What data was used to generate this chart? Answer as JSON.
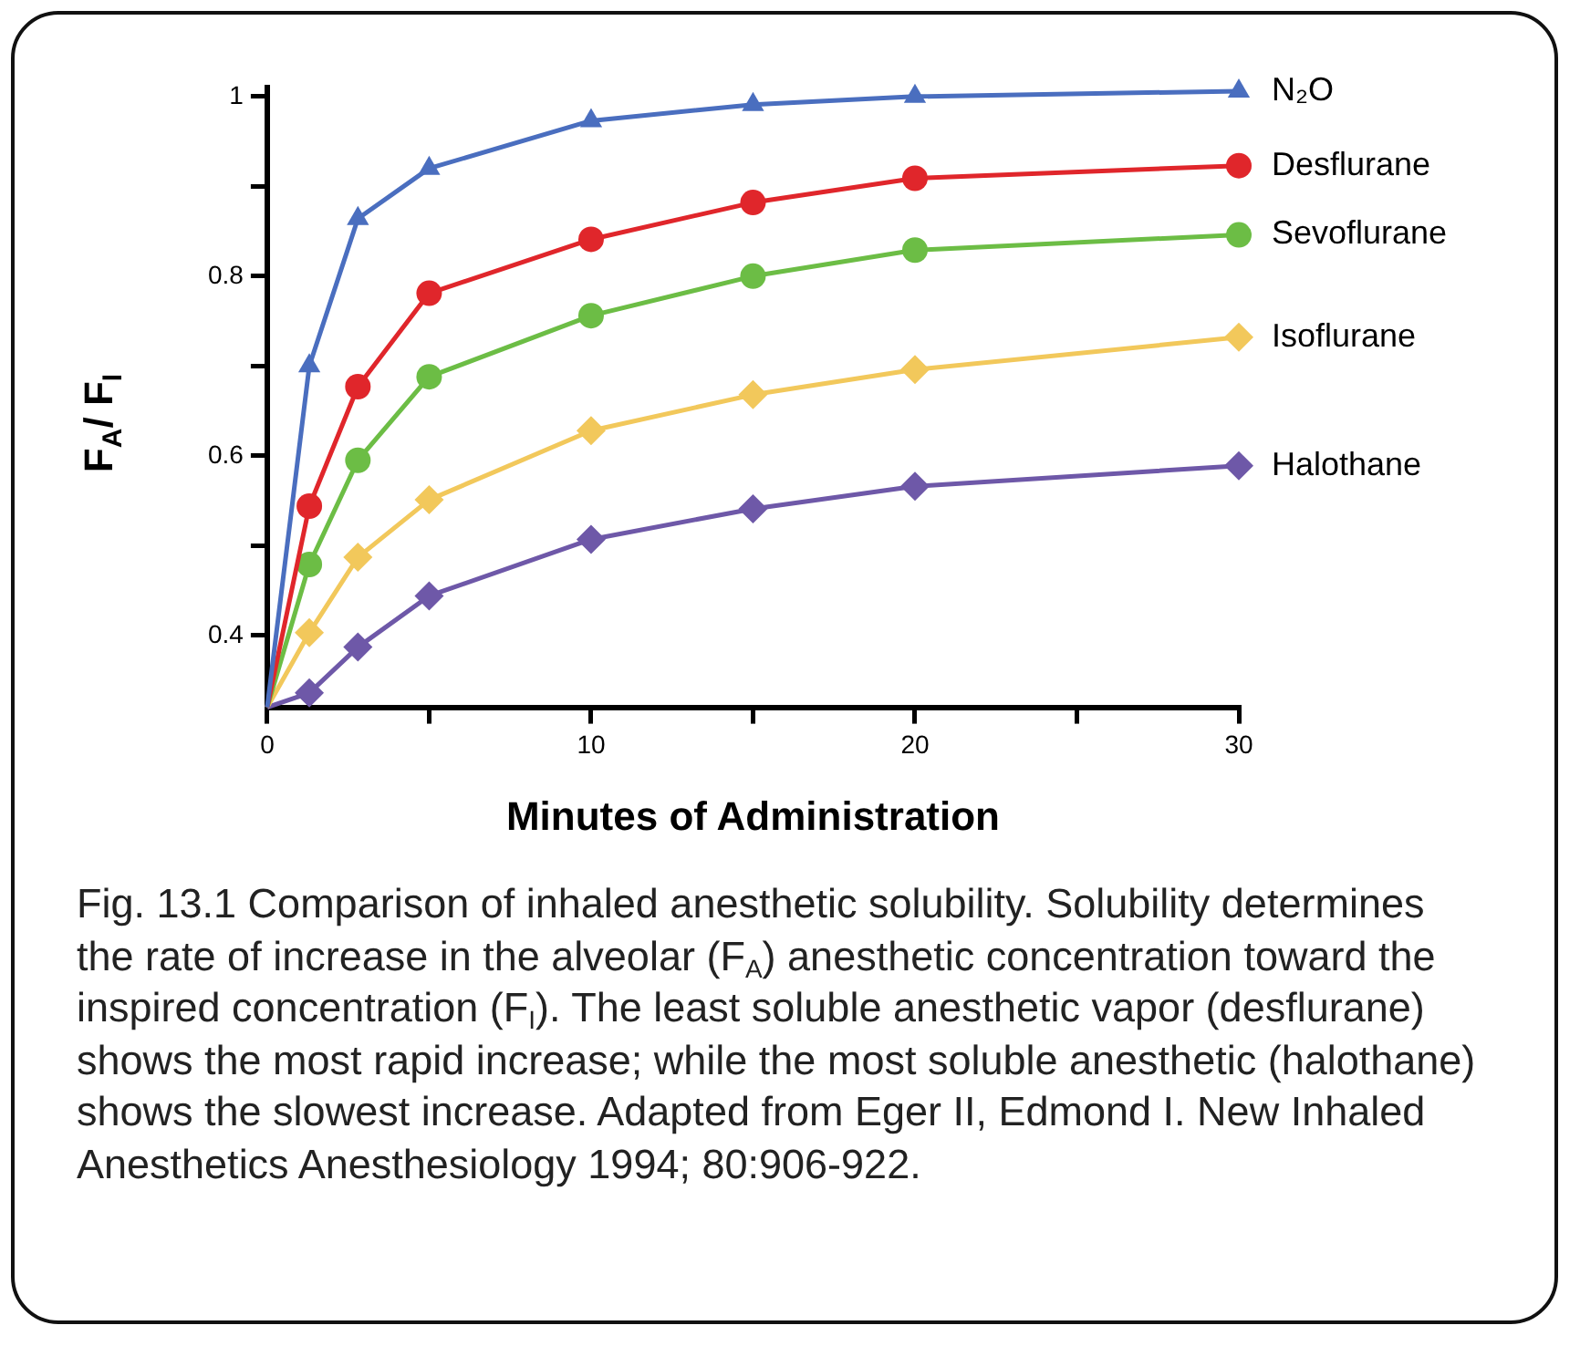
{
  "chart_data": {
    "type": "line",
    "xlabel": "Minutes of Administration",
    "ylabel": "F$_{A}$/ F$_{I}$",
    "x": [
      0,
      1.3,
      2.8,
      5,
      10,
      15,
      20,
      30
    ],
    "xlim": [
      0,
      30
    ],
    "xticks": [
      0,
      {
        "value": 5,
        "label": null
      },
      10,
      {
        "value": 15,
        "label": null
      },
      20,
      {
        "value": 25,
        "label": null
      },
      30
    ],
    "ylim": [
      0.32,
      1.01
    ],
    "yticks": [
      0.4,
      {
        "value": 0.5,
        "label": null
      },
      0.6,
      {
        "value": 0.7,
        "label": null
      },
      0.8,
      {
        "value": 0.9,
        "label": null
      },
      1
    ],
    "grid": false,
    "legend": false,
    "line_style": "solid",
    "series": [
      {
        "name": "N₂O",
        "color": "#4a6ebf",
        "marker": "triangle",
        "values": [
          0.32,
          0.7,
          0.864,
          0.92,
          0.973,
          0.991,
          1.0,
          1.006
        ]
      },
      {
        "name": "Desflurane",
        "color": "#e0262b",
        "marker": "circle",
        "values": [
          0.32,
          0.544,
          0.677,
          0.781,
          0.841,
          0.882,
          0.909,
          0.923
        ]
      },
      {
        "name": "Sevoflurane",
        "color": "#6cbd45",
        "marker": "circle",
        "values": [
          0.32,
          0.479,
          0.595,
          0.688,
          0.756,
          0.8,
          0.829,
          0.846
        ]
      },
      {
        "name": "Isoflurane",
        "color": "#f2c85b",
        "marker": "diamond",
        "values": [
          0.32,
          0.403,
          0.487,
          0.551,
          0.628,
          0.668,
          0.696,
          0.732
        ]
      },
      {
        "name": "Halothane",
        "color": "#6e58a8",
        "marker": "diamond",
        "values": [
          0.32,
          0.336,
          0.387,
          0.444,
          0.507,
          0.541,
          0.566,
          0.589
        ]
      }
    ],
    "annotations": [
      "Fig. 13.1 Comparison of inhaled anesthetic solubility. Solubility determines the rate of increase in the alveolar (F$_{A}$) anesthetic concentration toward the inspired concentration (F$_{I}$). The least soluble anesthetic vapor (desflurane) shows the most rapid increase; while the most soluble anesthetic (halothane) shows the slowest increase. Adapted from Eger II, Edmond I. New Inhaled Anesthetics Anesthesiology 1994; 80:906-922."
    ]
  }
}
